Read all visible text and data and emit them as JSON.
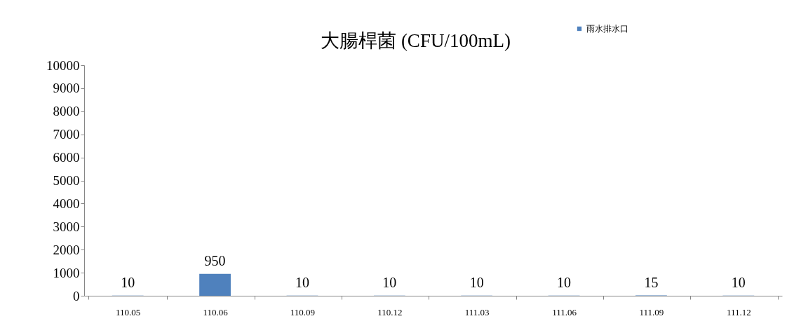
{
  "chart_data": {
    "type": "bar",
    "title": "大腸桿菌 (CFU/100mL)",
    "categories": [
      "110.05",
      "110.06",
      "110.09",
      "110.12",
      "111.03",
      "111.06",
      "111.09",
      "111.12"
    ],
    "series": [
      {
        "name": "雨水排水口",
        "color": "#4f81bd",
        "values": [
          10,
          950,
          10,
          10,
          10,
          10,
          15,
          10
        ]
      }
    ],
    "ylim": [
      0,
      10000
    ],
    "yticks": [
      0,
      1000,
      2000,
      3000,
      4000,
      5000,
      6000,
      7000,
      8000,
      9000,
      10000
    ],
    "grid": false,
    "legend": "top right",
    "data_labels": true
  }
}
